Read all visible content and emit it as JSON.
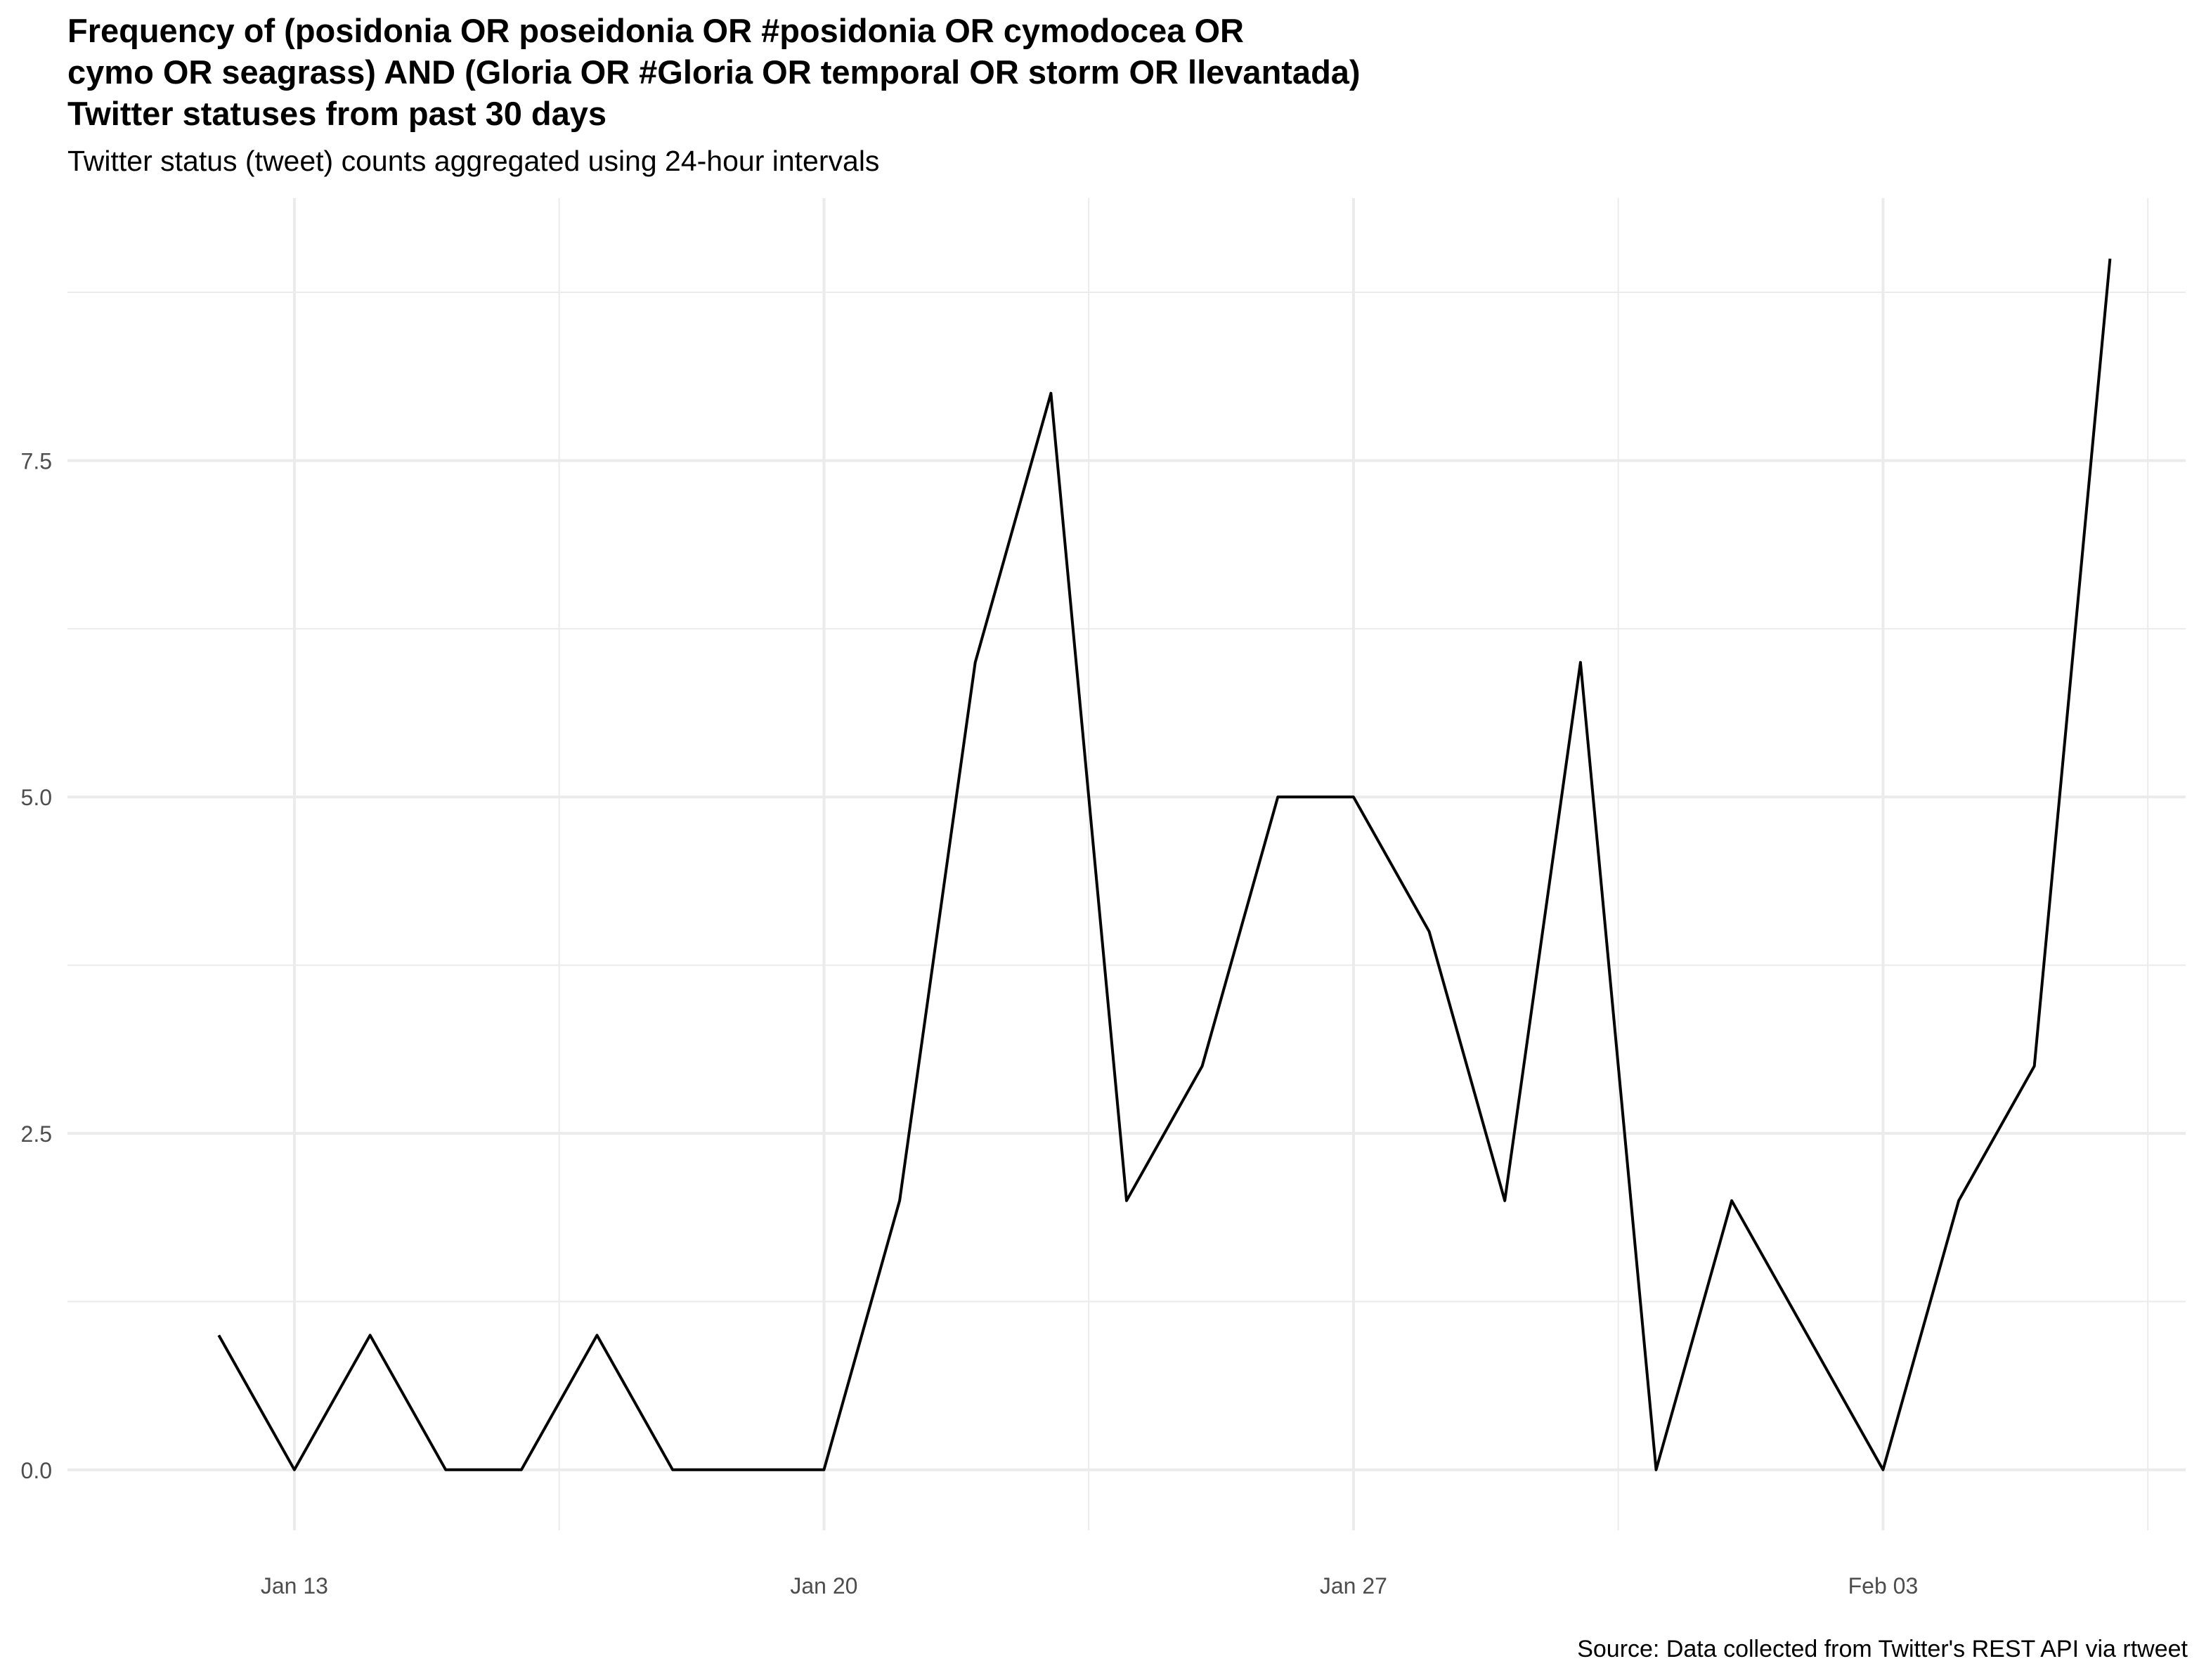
{
  "chart_data": {
    "type": "line",
    "title_lines": [
      "Frequency of (posidonia OR poseidonia OR #posidonia OR cymodocea OR",
      "cymo OR seagrass) AND (Gloria OR #Gloria OR temporal OR storm OR llevantada)",
      "Twitter statuses from past 30 days"
    ],
    "subtitle": "Twitter status (tweet) counts aggregated using 24-hour intervals",
    "caption": "Source: Data collected from Twitter's REST API via rtweet",
    "xlabel": "",
    "ylabel": "",
    "x_ticks": [
      {
        "date": "2020-01-13",
        "label": "Jan 13"
      },
      {
        "date": "2020-01-20",
        "label": "Jan 20"
      },
      {
        "date": "2020-01-27",
        "label": "Jan 27"
      },
      {
        "date": "2020-02-03",
        "label": "Feb 03"
      }
    ],
    "y_ticks": [
      {
        "value": 0,
        "label": "0.0"
      },
      {
        "value": 2.5,
        "label": "2.5"
      },
      {
        "value": 5,
        "label": "5.0"
      },
      {
        "value": 7.5,
        "label": "7.5"
      }
    ],
    "xlim": [
      "2020-01-10",
      "2020-02-07"
    ],
    "ylim": [
      -0.45,
      9.45
    ],
    "grid": true,
    "line_color": "#000000",
    "grid_color": "#ebebeb",
    "x": [
      "2020-01-12",
      "2020-01-13",
      "2020-01-14",
      "2020-01-15",
      "2020-01-16",
      "2020-01-17",
      "2020-01-18",
      "2020-01-19",
      "2020-01-20",
      "2020-01-21",
      "2020-01-22",
      "2020-01-23",
      "2020-01-24",
      "2020-01-25",
      "2020-01-26",
      "2020-01-27",
      "2020-01-28",
      "2020-01-29",
      "2020-01-30",
      "2020-01-31",
      "2020-02-01",
      "2020-02-02",
      "2020-02-03",
      "2020-02-04",
      "2020-02-05",
      "2020-02-06"
    ],
    "values": [
      1,
      0,
      1,
      0,
      0,
      1,
      0,
      0,
      0,
      2,
      6,
      8,
      2,
      3,
      5,
      5,
      4,
      2,
      6,
      0,
      2,
      1,
      0,
      2,
      3,
      9
    ]
  }
}
